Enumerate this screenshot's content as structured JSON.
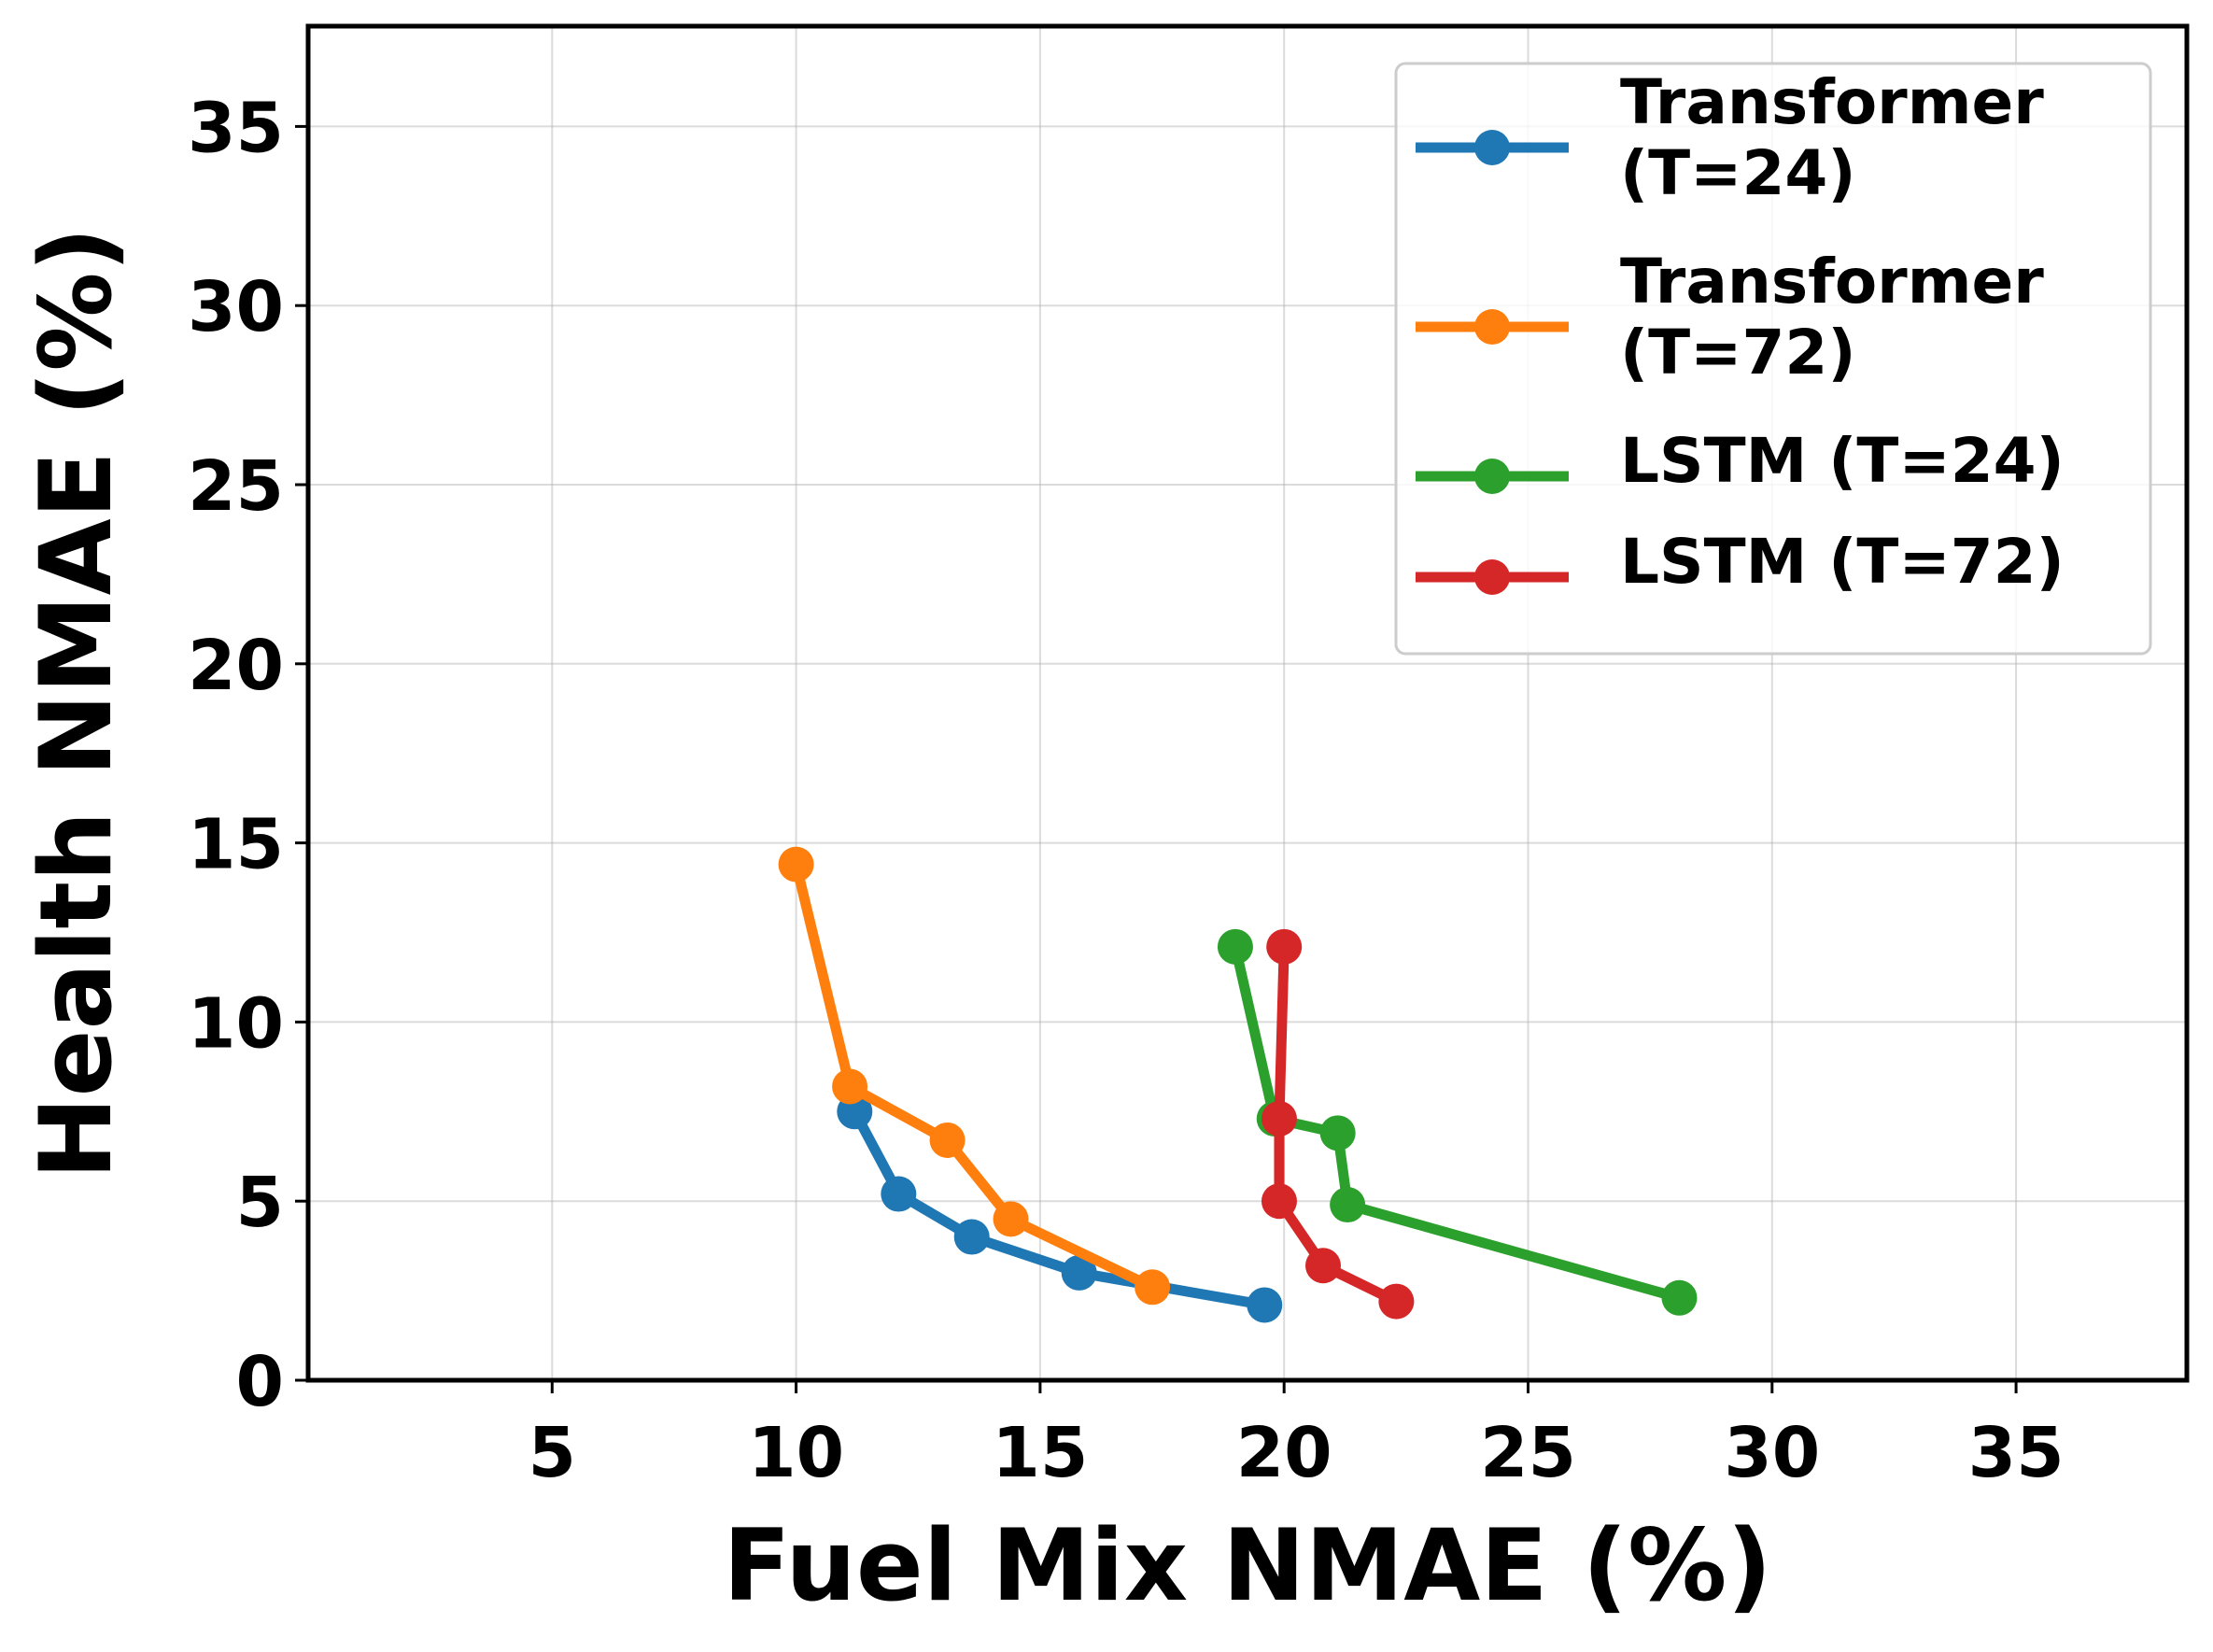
{
  "chart_data": {
    "type": "line",
    "title": "",
    "xlabel": "Fuel Mix NMAE (%)",
    "ylabel": "Health NMAE (%)",
    "xlim": [
      0,
      38.5
    ],
    "ylim": [
      0,
      37.8
    ],
    "xticks": [
      5,
      10,
      15,
      20,
      25,
      30,
      35
    ],
    "yticks": [
      0,
      5,
      10,
      15,
      20,
      25,
      30,
      35
    ],
    "grid": true,
    "legend_position": "top-right",
    "series": [
      {
        "name": "Transformer (T=24)",
        "legend_lines": [
          "Transformer",
          "(T=24)"
        ],
        "color": "#1f77b4",
        "x": [
          11.2,
          12.1,
          13.6,
          15.8,
          19.6
        ],
        "y": [
          7.5,
          5.2,
          4.0,
          3.0,
          2.1
        ]
      },
      {
        "name": "Transformer (T=72)",
        "legend_lines": [
          "Transformer",
          "(T=72)"
        ],
        "color": "#ff7f0e",
        "x": [
          10.0,
          11.1,
          13.1,
          14.4,
          17.3
        ],
        "y": [
          14.4,
          8.2,
          6.7,
          4.5,
          2.6
        ]
      },
      {
        "name": "LSTM (T=24)",
        "legend_lines": [
          "LSTM (T=24)"
        ],
        "color": "#2ca02c",
        "x": [
          19.0,
          19.8,
          21.1,
          21.3,
          28.1
        ],
        "y": [
          12.1,
          7.3,
          6.9,
          4.9,
          2.3
        ]
      },
      {
        "name": "LSTM (T=72)",
        "legend_lines": [
          "LSTM (T=72)"
        ],
        "color": "#d62728",
        "x": [
          20.0,
          19.9,
          19.9,
          20.8,
          22.3
        ],
        "y": [
          12.1,
          7.3,
          5.0,
          3.2,
          2.2
        ]
      }
    ]
  }
}
